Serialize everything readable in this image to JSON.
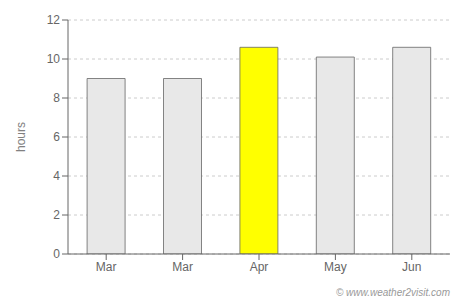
{
  "chart_data": {
    "type": "bar",
    "categories": [
      "Mar",
      "Mar",
      "Apr",
      "May",
      "Jun"
    ],
    "values": [
      9.0,
      9.0,
      10.6,
      10.1,
      10.6
    ],
    "colors": [
      "#e8e8e8",
      "#e8e8e8",
      "#ffff00",
      "#e8e8e8",
      "#e8e8e8"
    ],
    "ylabel": "hours",
    "ylim": [
      0,
      12
    ],
    "yticks": [
      0,
      2,
      4,
      6,
      8,
      10,
      12
    ],
    "grid": true,
    "annotations": [
      "© www.weather2visit.com"
    ]
  }
}
